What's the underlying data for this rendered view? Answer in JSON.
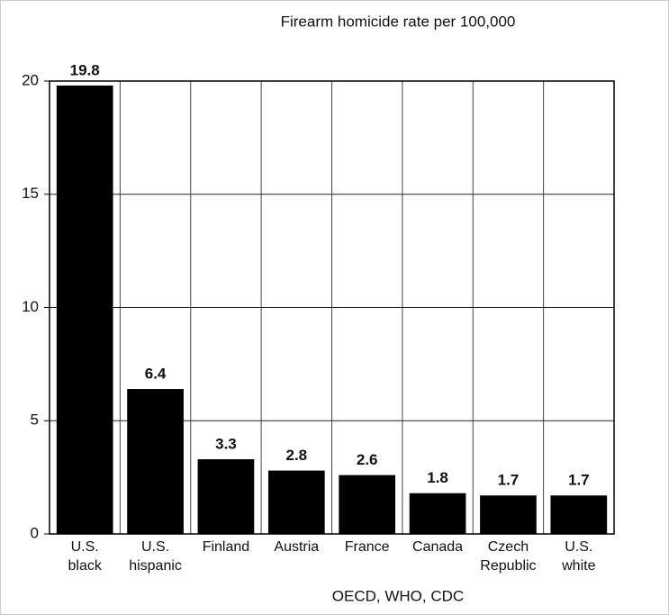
{
  "chart_data": {
    "type": "bar",
    "title": "Firearm homicide rate per 100,000",
    "caption": "OECD, WHO, CDC",
    "categories": [
      "U.S. black",
      "U.S. hispanic",
      "Finland",
      "Austria",
      "France",
      "Canada",
      "Czech Republic",
      "U.S. white"
    ],
    "values": [
      19.8,
      6.4,
      3.3,
      2.8,
      2.6,
      1.8,
      1.7,
      1.7
    ],
    "color": "#000000",
    "ylim": [
      0,
      20
    ],
    "yticks": [
      0,
      5,
      10,
      15,
      20
    ],
    "grid": true
  }
}
